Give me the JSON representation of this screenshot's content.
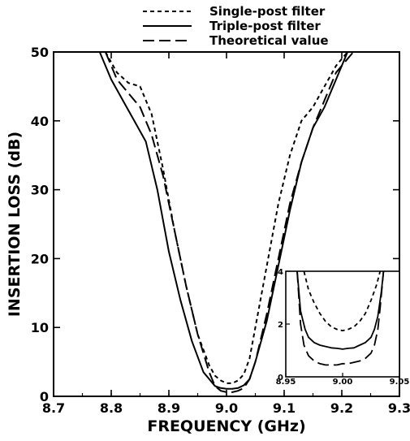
{
  "chart_data": {
    "type": "line",
    "xlabel": "FREQUENCY  (GHz)",
    "ylabel": "INSERTION  LOSS  (dB)",
    "xlim": [
      8.7,
      9.3
    ],
    "ylim": [
      0,
      50
    ],
    "x_ticks": [
      "8.7",
      "8.8",
      "8.9",
      "9.0",
      "9.1",
      "9.2",
      "9.3"
    ],
    "y_ticks": [
      "0",
      "10",
      "20",
      "30",
      "40",
      "50"
    ],
    "grid": false,
    "legend_position": "top-center",
    "series": [
      {
        "name": "Single-post filter",
        "style": "short-dash",
        "x": [
          8.79,
          8.81,
          8.83,
          8.85,
          8.87,
          8.89,
          8.91,
          8.93,
          8.95,
          8.97,
          8.98,
          8.99,
          9.0,
          9.01,
          9.02,
          9.03,
          9.04,
          9.05,
          9.07,
          9.09,
          9.11,
          9.13,
          9.15,
          9.17,
          9.19,
          9.21
        ],
        "y": [
          50,
          47,
          45.5,
          45,
          41,
          33,
          24,
          16,
          9,
          4.5,
          3,
          2.3,
          1.9,
          1.9,
          2.3,
          3.2,
          5.5,
          10,
          19,
          28,
          35,
          40,
          42,
          45,
          48,
          50
        ]
      },
      {
        "name": "Triple-post filter",
        "style": "solid",
        "x": [
          8.78,
          8.8,
          8.82,
          8.84,
          8.86,
          8.88,
          8.9,
          8.92,
          8.94,
          8.96,
          8.98,
          8.99,
          9.0,
          9.01,
          9.02,
          9.03,
          9.04,
          9.05,
          9.07,
          9.09,
          9.11,
          9.13,
          9.15,
          9.17,
          9.19,
          9.21
        ],
        "y": [
          50,
          46,
          43,
          40,
          37,
          30,
          21,
          14,
          8,
          3.5,
          1.5,
          1.2,
          1.1,
          1.1,
          1.2,
          1.6,
          2.5,
          5,
          11,
          19,
          27,
          34,
          39,
          42,
          46,
          50
        ]
      },
      {
        "name": "Theoretical value",
        "style": "long-dash",
        "x": [
          8.79,
          8.81,
          8.83,
          8.85,
          8.87,
          8.89,
          8.91,
          8.93,
          8.95,
          8.97,
          8.98,
          8.99,
          9.0,
          9.01,
          9.02,
          9.03,
          9.04,
          9.05,
          9.07,
          9.09,
          9.11,
          9.13,
          9.15,
          9.17,
          9.19,
          9.22
        ],
        "y": [
          50,
          46,
          44,
          42,
          38,
          32,
          24,
          16,
          9,
          3.5,
          1.5,
          0.8,
          0.6,
          0.6,
          0.8,
          1.2,
          2.5,
          5,
          12,
          20,
          28,
          34,
          39,
          43,
          47,
          50
        ]
      }
    ],
    "inset": {
      "xlim": [
        8.95,
        9.05
      ],
      "ylim": [
        0,
        4
      ],
      "x_ticks": [
        "8.95",
        "9.00",
        "9.05"
      ],
      "y_ticks": [
        "0",
        "2",
        "4"
      ],
      "series": [
        {
          "name": "Single-post filter",
          "style": "short-dash",
          "x": [
            8.966,
            8.97,
            8.975,
            8.98,
            8.985,
            8.99,
            8.995,
            9.0,
            9.005,
            9.01,
            9.015,
            9.02,
            9.025,
            9.03,
            9.033
          ],
          "y": [
            4,
            3.3,
            2.8,
            2.4,
            2.1,
            1.9,
            1.8,
            1.75,
            1.8,
            1.9,
            2.1,
            2.4,
            2.9,
            3.5,
            4
          ]
        },
        {
          "name": "Triple-post filter",
          "style": "solid",
          "x": [
            8.96,
            8.963,
            8.967,
            8.97,
            8.975,
            8.98,
            8.985,
            8.99,
            8.995,
            9.0,
            9.005,
            9.01,
            9.015,
            9.02,
            9.025,
            9.028,
            9.031,
            9.034,
            9.036
          ],
          "y": [
            4,
            2.5,
            1.8,
            1.5,
            1.3,
            1.2,
            1.15,
            1.1,
            1.08,
            1.05,
            1.08,
            1.1,
            1.2,
            1.3,
            1.5,
            1.8,
            2.3,
            3.2,
            4
          ]
        },
        {
          "name": "Theoretical value",
          "style": "long-dash",
          "x": [
            8.96,
            8.963,
            8.966,
            8.97,
            8.975,
            8.98,
            8.985,
            8.99,
            8.995,
            9.0,
            9.005,
            9.01,
            9.015,
            9.02,
            9.025,
            9.028,
            9.031,
            9.033,
            9.036
          ],
          "y": [
            4,
            2.0,
            1.2,
            0.8,
            0.6,
            0.5,
            0.45,
            0.45,
            0.45,
            0.5,
            0.5,
            0.55,
            0.6,
            0.7,
            0.9,
            1.2,
            1.8,
            2.6,
            4
          ]
        }
      ]
    }
  }
}
